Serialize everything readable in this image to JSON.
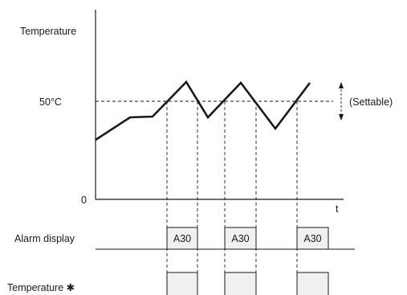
{
  "diagram": {
    "y_axis_label": "Temperature",
    "x_axis_label": "t",
    "origin_label": "0",
    "threshold_label": "50°C",
    "settable_label": "(Settable)",
    "alarm_row_label": "Alarm display",
    "output_row_label": "Temperature ✱",
    "alarm_code": "A30",
    "alarm_events": [
      {
        "label": "A30"
      },
      {
        "label": "A30"
      },
      {
        "label": "A30"
      }
    ]
  },
  "colors": {
    "line": "#1a1a1a",
    "box_fill": "#f0f0f0",
    "box_stroke": "#1a1a1a"
  }
}
